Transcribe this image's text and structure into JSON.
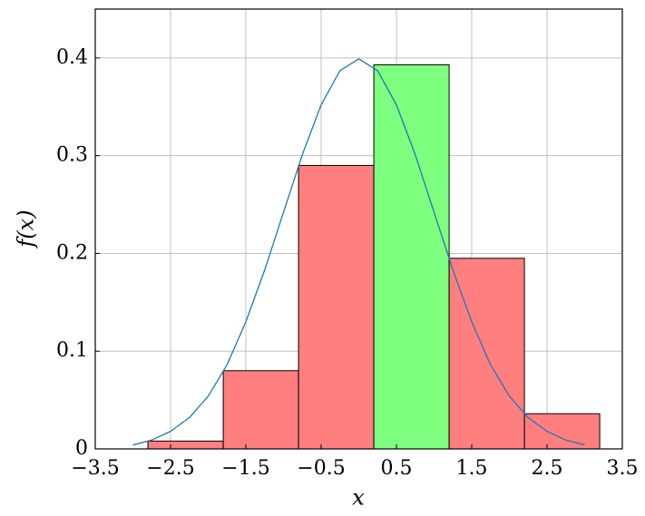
{
  "chart_data": {
    "type": "histogram",
    "xlabel": "x",
    "ylabel": "f(x)",
    "bins": [
      -2.8,
      -1.8,
      -0.8,
      0.2,
      1.2,
      2.2,
      3.2
    ],
    "values": [
      0.008,
      0.08,
      0.29,
      0.393,
      0.195,
      0.036
    ],
    "colors": [
      "#ff7f7f",
      "#ff7f7f",
      "#ff7f7f",
      "#7fff7f",
      "#ff7f7f",
      "#ff7f7f"
    ],
    "curve": {
      "color": "#1f77b4",
      "x": [
        -3,
        -2.75,
        -2.5,
        -2.25,
        -2,
        -1.75,
        -1.5,
        -1.25,
        -1,
        -0.75,
        -0.5,
        -0.25,
        0,
        0.25,
        0.5,
        0.75,
        1,
        1.25,
        1.5,
        1.75,
        2,
        2.25,
        2.5,
        2.75,
        3
      ],
      "values": [
        0.004,
        0.009,
        0.018,
        0.032,
        0.054,
        0.086,
        0.13,
        0.183,
        0.242,
        0.301,
        0.352,
        0.387,
        0.399,
        0.387,
        0.352,
        0.301,
        0.242,
        0.183,
        0.13,
        0.086,
        0.054,
        0.032,
        0.018,
        0.009,
        0.004
      ]
    },
    "xlim": [
      -3.5,
      3.5
    ],
    "ylim": [
      0,
      0.45
    ],
    "xticks": [
      {
        "value": -3.5,
        "label": "−3.5"
      },
      {
        "value": -2.5,
        "label": "−2.5"
      },
      {
        "value": -1.5,
        "label": "−1.5"
      },
      {
        "value": -0.5,
        "label": "−0.5"
      },
      0.5,
      1.5,
      2.5,
      3.5
    ],
    "yticks": [
      0,
      0.1,
      0.2,
      0.3,
      0.4
    ],
    "grid": true
  }
}
